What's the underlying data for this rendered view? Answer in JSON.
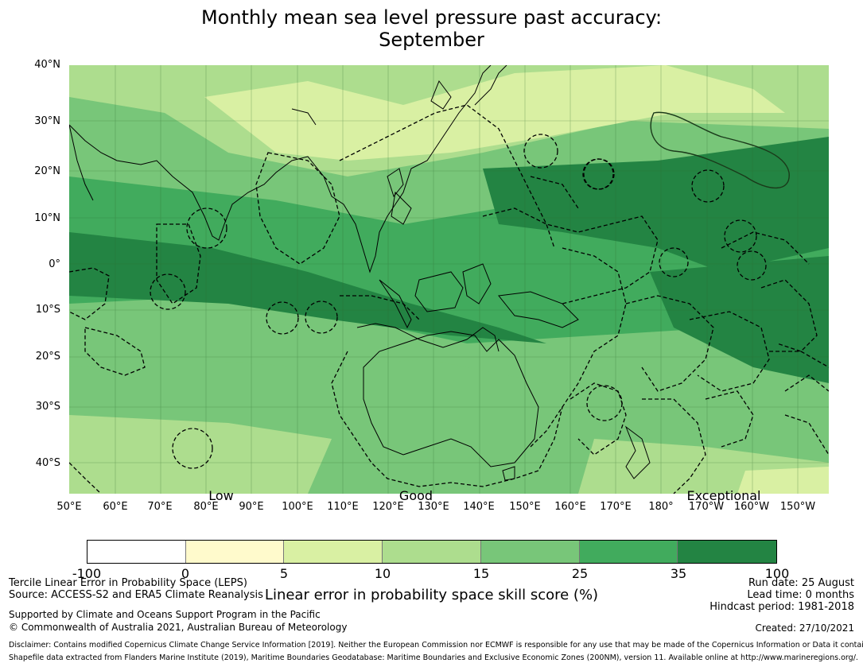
{
  "title": {
    "line1": "Monthly mean sea level pressure past accuracy:",
    "line2": "September"
  },
  "map": {
    "lat_labels": [
      "40°N",
      "30°N",
      "20°N",
      "10°N",
      "0°",
      "10°S",
      "20°S",
      "30°S",
      "40°S"
    ],
    "lon_labels": [
      "50°E",
      "60°E",
      "70°E",
      "80°E",
      "90°E",
      "100°E",
      "110°E",
      "120°E",
      "130°E",
      "140°E",
      "150°E",
      "160°E",
      "170°E",
      "180°",
      "170°W",
      "160°W",
      "150°W"
    ],
    "lat_range": [
      -46,
      40
    ],
    "lon_range": [
      50,
      215
    ]
  },
  "categories": {
    "low": "Low",
    "good": "Good",
    "exceptional": "Exceptional"
  },
  "colorbar": {
    "ticks": [
      "-100",
      "0",
      "5",
      "10",
      "15",
      "25",
      "35",
      "100"
    ],
    "colors": [
      "#ffffff",
      "#fffacc",
      "#d9f0a3",
      "#addd8e",
      "#78c679",
      "#41ab5d",
      "#238443"
    ],
    "label": "Linear error in probability space skill score (%)"
  },
  "footer": {
    "method": "Tercile Linear Error in Probability Space (LEPS)",
    "source": "Source: ACCESS-S2 and ERA5 Climate Reanalysis",
    "supported": "Supported by Climate and Oceans Support Program in the Pacific",
    "copyright": "© Commonwealth of Australia 2021, Australian Bureau of Meteorology",
    "run_date": "Run date: 25 August",
    "lead_time": "Lead time: 0 months",
    "hindcast": "Hindcast period: 1981-2018",
    "created": "Created: 27/10/2021",
    "disclaimer": "Disclaimer: Contains modified Copernicus Climate Change Service Information [2019]. Neither the European Commission nor ECMWF is responsible for any use that may be made of the Copernicus Information or Data it contains.",
    "shapefile": "Shapefile data extracted from Flanders Marine Institute (2019), Maritime Boundaries Geodatabase: Maritime Boundaries and Exclusive Economic Zones (200NM), version 11. Available online at http://www.marineregions.org/."
  }
}
